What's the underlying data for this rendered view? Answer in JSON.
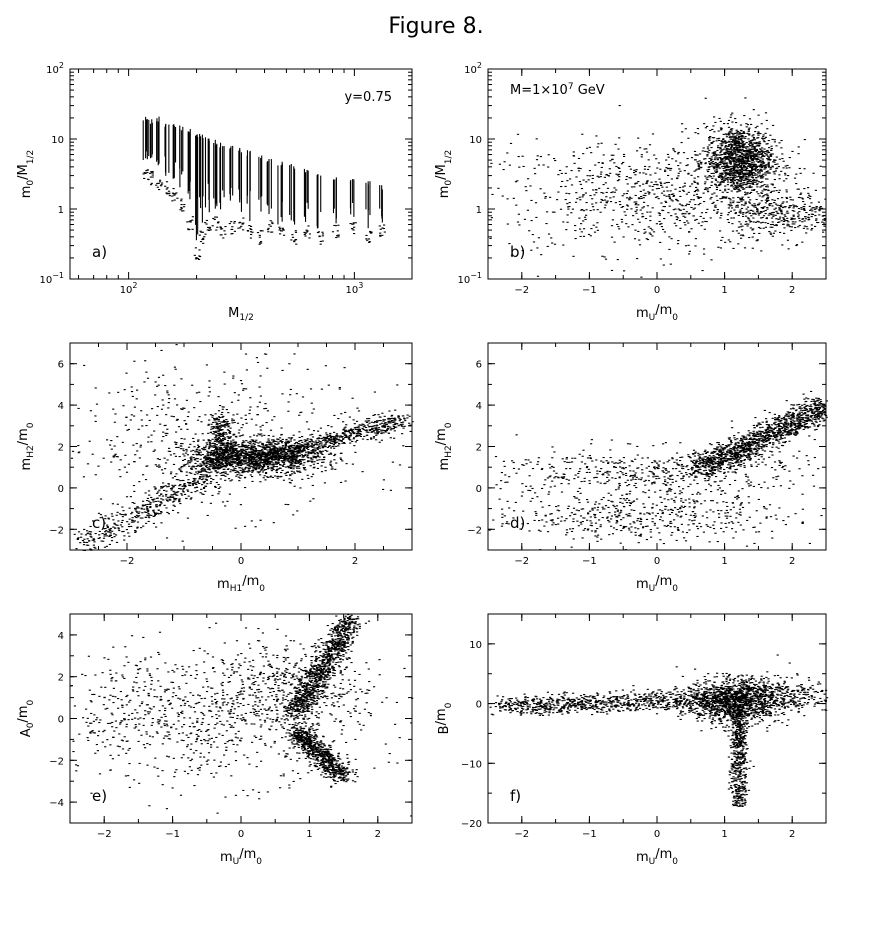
{
  "figure": {
    "title": "Figure 8."
  },
  "chart_data": [
    {
      "id": "a",
      "type": "scatter",
      "panel_label": "a)",
      "annotation": "y=0.75",
      "xlabel": "M",
      "xlabel_sub": "1/2",
      "ylabel": "m",
      "ylabel_sub": "0",
      "ylabel_mid": "/M",
      "ylabel_sub2": "1/2",
      "xscale": "log",
      "yscale": "log",
      "xlim": [
        55,
        1800
      ],
      "ylim": [
        0.1,
        100
      ],
      "xticks": [
        {
          "v": 100,
          "base": "10",
          "exp": "2"
        },
        {
          "v": 1000,
          "base": "10",
          "exp": "3"
        }
      ],
      "yticks": [
        {
          "v": 0.1,
          "base": "10",
          "exp": "−1"
        },
        {
          "v": 1,
          "text": "1"
        },
        {
          "v": 10,
          "text": "10"
        },
        {
          "v": 100,
          "base": "10",
          "exp": "2"
        }
      ],
      "series": [
        {
          "pattern": "vertical-strips",
          "x": [
            118,
            125,
            135,
            148,
            158,
            172,
            185,
            200,
            210,
            222,
            240,
            260,
            285,
            310,
            340,
            380,
            420,
            470,
            530,
            610,
            700,
            820,
            980,
            1150,
            1320
          ],
          "ymax": [
            22,
            20,
            21,
            18,
            17,
            16,
            14,
            13,
            12,
            11,
            10,
            9,
            8,
            7.5,
            7,
            6,
            5.5,
            5,
            4.5,
            4,
            3.5,
            3,
            2.8,
            2.5,
            2.2
          ],
          "ymin": [
            4,
            3.5,
            3,
            2.5,
            2,
            1.5,
            0.8,
            0.3,
            0.5,
            0.7,
            0.8,
            0.6,
            0.7,
            0.8,
            0.6,
            0.5,
            0.7,
            0.6,
            0.5,
            0.6,
            0.5,
            0.6,
            0.7,
            0.5,
            0.6
          ]
        }
      ]
    },
    {
      "id": "b",
      "type": "scatter",
      "panel_label": "b)",
      "annotation": "M=1×10",
      "annotation_exp": "7",
      "annotation_tail": " GeV",
      "xlabel": "m",
      "xlabel_sub": "U",
      "xlabel_mid": "/m",
      "xlabel_sub2": "0",
      "ylabel": "m",
      "ylabel_sub": "0",
      "ylabel_mid": "/M",
      "ylabel_sub2": "1/2",
      "xscale": "linear",
      "yscale": "log",
      "xlim": [
        -2.5,
        2.5
      ],
      "ylim": [
        0.1,
        100
      ],
      "xticks": [
        {
          "v": -2,
          "text": "−2"
        },
        {
          "v": -1,
          "text": "−1"
        },
        {
          "v": 0,
          "text": "0"
        },
        {
          "v": 1,
          "text": "1"
        },
        {
          "v": 2,
          "text": "2"
        }
      ],
      "yticks": [
        {
          "v": 0.1,
          "base": "10",
          "exp": "−1"
        },
        {
          "v": 1,
          "text": "1"
        },
        {
          "v": 10,
          "text": "10"
        },
        {
          "v": 100,
          "base": "10",
          "exp": "2"
        }
      ],
      "series": [
        {
          "pattern": "cloud",
          "cx": 0.0,
          "cy": 1.5,
          "sx": 1.3,
          "sy": 0.8,
          "n": 900,
          "logy": true
        },
        {
          "pattern": "cloud",
          "cx": 1.2,
          "cy": 5,
          "sx": 0.25,
          "sy": 0.5,
          "n": 1300,
          "logy": true
        },
        {
          "pattern": "cloud",
          "cx": 1.8,
          "cy": 0.9,
          "sx": 0.4,
          "sy": 0.3,
          "n": 300,
          "logy": true
        }
      ]
    },
    {
      "id": "c",
      "type": "scatter",
      "panel_label": "c)",
      "xlabel": "m",
      "xlabel_sub": "H1",
      "xlabel_mid": "/m",
      "xlabel_sub2": "0",
      "ylabel": "m",
      "ylabel_sub": "H2",
      "ylabel_mid": "/m",
      "ylabel_sub2": "0",
      "xscale": "linear",
      "yscale": "linear",
      "xlim": [
        -3,
        3
      ],
      "ylim": [
        -3,
        7
      ],
      "xticks": [
        {
          "v": -2,
          "text": "−2"
        },
        {
          "v": 0,
          "text": "0"
        },
        {
          "v": 2,
          "text": "2"
        }
      ],
      "yticks": [
        {
          "v": -2,
          "text": "−2"
        },
        {
          "v": 0,
          "text": "0"
        },
        {
          "v": 2,
          "text": "2"
        },
        {
          "v": 4,
          "text": "4"
        },
        {
          "v": 6,
          "text": "6"
        }
      ],
      "series": [
        {
          "pattern": "cloud",
          "cx": 0.2,
          "cy": 1.5,
          "sx": 0.6,
          "sy": 0.4,
          "n": 1500
        },
        {
          "pattern": "band",
          "x0": 0.5,
          "y0": 1.6,
          "x1": 2.9,
          "y1": 3.3,
          "spread": 0.25,
          "n": 600
        },
        {
          "pattern": "band",
          "x0": -2.8,
          "y0": -2.8,
          "x1": -0.3,
          "y1": 1.2,
          "spread": 0.35,
          "n": 500
        },
        {
          "pattern": "band",
          "x0": -0.3,
          "y0": 1.2,
          "x1": -0.4,
          "y1": 3.5,
          "spread": 0.2,
          "n": 250
        },
        {
          "pattern": "cloud",
          "cx": -0.5,
          "cy": 2.5,
          "sx": 1.3,
          "sy": 1.8,
          "n": 500
        }
      ]
    },
    {
      "id": "d",
      "type": "scatter",
      "panel_label": "d)",
      "xlabel": "m",
      "xlabel_sub": "U",
      "xlabel_mid": "/m",
      "xlabel_sub2": "0",
      "ylabel": "m",
      "ylabel_sub": "H2",
      "ylabel_mid": "/m",
      "ylabel_sub2": "0",
      "xscale": "linear",
      "yscale": "linear",
      "xlim": [
        -2.5,
        2.5
      ],
      "ylim": [
        -3,
        7
      ],
      "xticks": [
        {
          "v": -2,
          "text": "−2"
        },
        {
          "v": -1,
          "text": "−1"
        },
        {
          "v": 0,
          "text": "0"
        },
        {
          "v": 1,
          "text": "1"
        },
        {
          "v": 2,
          "text": "2"
        }
      ],
      "yticks": [
        {
          "v": -2,
          "text": "−2"
        },
        {
          "v": 0,
          "text": "0"
        },
        {
          "v": 2,
          "text": "2"
        },
        {
          "v": 4,
          "text": "4"
        },
        {
          "v": 6,
          "text": "6"
        }
      ],
      "series": [
        {
          "pattern": "band",
          "x0": 0.6,
          "y0": 0.9,
          "x1": 2.5,
          "y1": 4.0,
          "spread": 0.3,
          "n": 1300
        },
        {
          "pattern": "cloud",
          "cx": -0.2,
          "cy": 0.8,
          "sx": 1.2,
          "sy": 0.6,
          "n": 500
        },
        {
          "pattern": "cloud",
          "cx": -0.3,
          "cy": -1.3,
          "sx": 1.1,
          "sy": 0.6,
          "n": 500
        }
      ]
    },
    {
      "id": "e",
      "type": "scatter",
      "panel_label": "e)",
      "xlabel": "m",
      "xlabel_sub": "U",
      "xlabel_mid": "/m",
      "xlabel_sub2": "0",
      "ylabel": "A",
      "ylabel_sub": "0",
      "ylabel_mid": "/m",
      "ylabel_sub2": "0",
      "xscale": "linear",
      "yscale": "linear",
      "xlim": [
        -2.5,
        2.5
      ],
      "ylim": [
        -5,
        5
      ],
      "xticks": [
        {
          "v": -2,
          "text": "−2"
        },
        {
          "v": -1,
          "text": "−1"
        },
        {
          "v": 0,
          "text": "0"
        },
        {
          "v": 1,
          "text": "1"
        },
        {
          "v": 2,
          "text": "2"
        }
      ],
      "yticks": [
        {
          "v": -4,
          "text": "−4"
        },
        {
          "v": -2,
          "text": "−2"
        },
        {
          "v": 0,
          "text": "0"
        },
        {
          "v": 2,
          "text": "2"
        },
        {
          "v": 4,
          "text": "4"
        }
      ],
      "series": [
        {
          "pattern": "band",
          "x0": 0.8,
          "y0": 0.3,
          "x1": 1.6,
          "y1": 4.8,
          "spread": 0.2,
          "n": 900
        },
        {
          "pattern": "band",
          "x0": 0.8,
          "y0": -0.6,
          "x1": 1.5,
          "y1": -2.8,
          "spread": 0.2,
          "n": 700
        },
        {
          "pattern": "cloud",
          "cx": -0.6,
          "cy": 0.2,
          "sx": 1.2,
          "sy": 1.6,
          "n": 900
        },
        {
          "pattern": "cloud",
          "cx": 0.8,
          "cy": 1.5,
          "sx": 0.5,
          "sy": 1.0,
          "n": 400
        }
      ]
    },
    {
      "id": "f",
      "type": "scatter",
      "panel_label": "f)",
      "xlabel": "m",
      "xlabel_sub": "U",
      "xlabel_mid": "/m",
      "xlabel_sub2": "0",
      "ylabel": "B",
      "ylabel_mid": "/m",
      "ylabel_sub2": "0",
      "xscale": "linear",
      "yscale": "linear",
      "xlim": [
        -2.5,
        2.5
      ],
      "ylim": [
        -20,
        15
      ],
      "xticks": [
        {
          "v": -2,
          "text": "−2"
        },
        {
          "v": -1,
          "text": "−1"
        },
        {
          "v": 0,
          "text": "0"
        },
        {
          "v": 1,
          "text": "1"
        },
        {
          "v": 2,
          "text": "2"
        }
      ],
      "yticks": [
        {
          "v": -20,
          "text": "−20"
        },
        {
          "v": -10,
          "text": "−10"
        },
        {
          "v": 0,
          "text": "0"
        },
        {
          "v": 10,
          "text": "10"
        }
      ],
      "series": [
        {
          "pattern": "band",
          "x0": -2.4,
          "y0": -0.5,
          "x1": 0.6,
          "y1": 0.8,
          "spread": 0.8,
          "n": 800
        },
        {
          "pattern": "cloud",
          "cx": 1.1,
          "cy": 0.5,
          "sx": 0.35,
          "sy": 1.8,
          "n": 1300
        },
        {
          "pattern": "band",
          "x0": 1.2,
          "y0": -1,
          "x1": 1.2,
          "y1": -17,
          "spread": 0.12,
          "n": 500
        },
        {
          "pattern": "cloud",
          "cx": 1.8,
          "cy": 1.5,
          "sx": 0.4,
          "sy": 1.5,
          "n": 300
        }
      ]
    }
  ]
}
